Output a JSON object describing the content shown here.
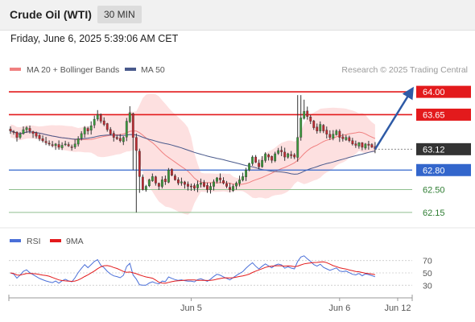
{
  "header": {
    "title": "Crude Oil (WTI)",
    "interval": "30 MIN",
    "datetime": "Friday, June 6, 2025 5:39:06 AM CET"
  },
  "colors": {
    "resistance": "#e31a1c",
    "support": "#3366cc",
    "support_minor": "#8fbf8f",
    "bollinger_fill": "#fde0e0",
    "ma20": "#f08080",
    "ma50": "#4a5a8c",
    "candle_up": "#3a9a3a",
    "candle_down": "#c0282f",
    "arrow": "#2e5aa6",
    "rsi": "#4a6fd8",
    "rsi_ma": "#e31a1c",
    "current_bg": "#333333"
  },
  "chart_data": [
    {
      "type": "candlestick",
      "legend": [
        {
          "label": "MA 20 + Bollinger Bands",
          "color": "#f08080"
        },
        {
          "label": "MA 50",
          "color": "#4a5a8c"
        }
      ],
      "copyright": "Research © 2025 Trading Central",
      "ylim": [
        62.05,
        64.1
      ],
      "levels": [
        {
          "value": 64.0,
          "label": "64.00",
          "kind": "resistance"
        },
        {
          "value": 63.65,
          "label": "63.65",
          "kind": "resistance"
        },
        {
          "value": 63.12,
          "label": "63.12",
          "kind": "current"
        },
        {
          "value": 62.8,
          "label": "62.80",
          "kind": "support"
        },
        {
          "value": 62.5,
          "label": "62.50",
          "kind": "support_minor"
        },
        {
          "value": 62.15,
          "label": "62.15",
          "kind": "support_minor"
        }
      ],
      "x_ticks": [
        {
          "index": 56,
          "label": "Jun 5"
        },
        {
          "index": 102,
          "label": "Jun 6"
        },
        {
          "index": 120,
          "label": "Jun 12"
        }
      ],
      "projection": {
        "from_index": 113,
        "from_value": 63.12,
        "to_index": 124,
        "to_value": 64.0
      },
      "close": [
        63.4,
        63.38,
        63.3,
        63.35,
        63.42,
        63.45,
        63.4,
        63.36,
        63.32,
        63.28,
        63.25,
        63.22,
        63.2,
        63.18,
        63.2,
        63.15,
        63.18,
        63.2,
        63.17,
        63.15,
        63.2,
        63.28,
        63.36,
        63.45,
        63.4,
        63.48,
        63.58,
        63.65,
        63.55,
        63.5,
        63.42,
        63.35,
        63.3,
        63.28,
        63.25,
        63.3,
        63.55,
        63.68,
        63.3,
        63.1,
        62.7,
        62.5,
        62.55,
        62.65,
        62.7,
        62.6,
        62.55,
        62.65,
        62.62,
        62.8,
        62.72,
        62.65,
        62.6,
        62.62,
        62.58,
        62.55,
        62.55,
        62.52,
        62.58,
        62.6,
        62.55,
        62.5,
        62.55,
        62.62,
        62.68,
        62.65,
        62.6,
        62.55,
        62.5,
        62.55,
        62.6,
        62.65,
        62.7,
        62.8,
        62.9,
        63.0,
        62.92,
        62.85,
        62.95,
        63.05,
        63.0,
        62.95,
        63.05,
        63.1,
        63.08,
        63.0,
        63.05,
        63.02,
        63.0,
        63.3,
        63.6,
        63.7,
        63.62,
        63.55,
        63.45,
        63.4,
        63.5,
        63.4,
        63.35,
        63.3,
        63.35,
        63.4,
        63.3,
        63.28,
        63.3,
        63.25,
        63.2,
        63.18,
        63.22,
        63.15,
        63.2,
        63.18,
        63.15,
        63.12
      ],
      "rsi_axis": {
        "ticks": [
          30,
          50,
          70
        ],
        "range": [
          20,
          80
        ]
      },
      "rsi_legend": [
        {
          "label": "RSI",
          "color": "#4a6fd8"
        },
        {
          "label": "9MA",
          "color": "#e31a1c"
        }
      ]
    }
  ]
}
